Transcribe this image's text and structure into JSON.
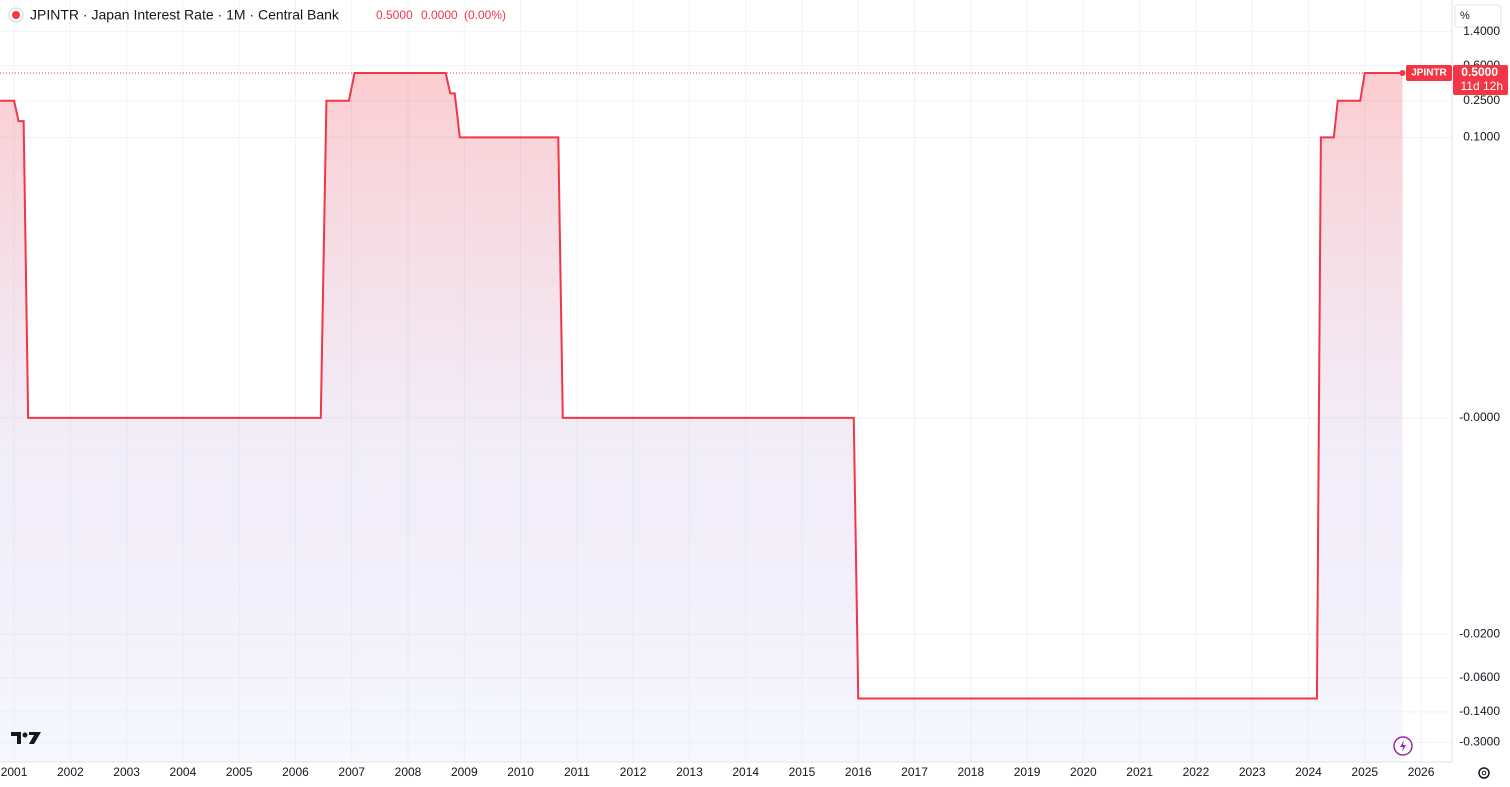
{
  "chart_data": {
    "type": "area",
    "title": "JPINTR · Japan Interest Rate · 1M · Central Bank",
    "last_value": "0.5000",
    "change": "0.0000",
    "change_pct": "(0.00%)",
    "scale_button": "%",
    "price_label": {
      "name": "JPINTR",
      "value": "0.5000",
      "countdown": "11d 12h"
    },
    "series": [
      {
        "name": "JPINTR",
        "color": "#f23645",
        "x": [
          2000.75,
          2001.0,
          2001.08,
          2001.17,
          2001.25,
          2006.45,
          2006.55,
          2006.95,
          2007.05,
          2008.67,
          2008.75,
          2008.83,
          2008.92,
          2010.67,
          2010.75,
          2015.92,
          2016.0,
          2024.15,
          2024.22,
          2024.45,
          2024.52,
          2024.92,
          2025.0,
          2025.67
        ],
        "values": [
          0.25,
          0.25,
          0.15,
          0.15,
          0,
          0,
          0.25,
          0.25,
          0.5,
          0.5,
          0.3,
          0.3,
          0.1,
          0.1,
          0,
          0,
          -0.1,
          -0.1,
          0.1,
          0.1,
          0.25,
          0.25,
          0.5,
          0.5
        ]
      }
    ],
    "xlim": [
      2000.75,
      2026.55
    ],
    "xticks": [
      2001,
      2002,
      2003,
      2004,
      2005,
      2006,
      2007,
      2008,
      2009,
      2010,
      2011,
      2012,
      2013,
      2014,
      2015,
      2016,
      2017,
      2018,
      2019,
      2020,
      2021,
      2022,
      2023,
      2024,
      2025,
      2026
    ],
    "ylim": [
      -0.49,
      3.1
    ],
    "yticks": [
      {
        "value": 1.4,
        "label": "1.4000"
      },
      {
        "value": 0.6,
        "label": "0.6000"
      },
      {
        "value": 0.25,
        "label": "0.2500"
      },
      {
        "value": 0.1,
        "label": "0.1000"
      },
      {
        "value": 0,
        "label": "-0.0000"
      },
      {
        "value": -0.02,
        "label": "-0.0200"
      },
      {
        "value": -0.06,
        "label": "-0.0600"
      },
      {
        "value": -0.14,
        "label": "-0.1400"
      },
      {
        "value": -0.3,
        "label": "-0.3000"
      }
    ],
    "grid": true
  }
}
